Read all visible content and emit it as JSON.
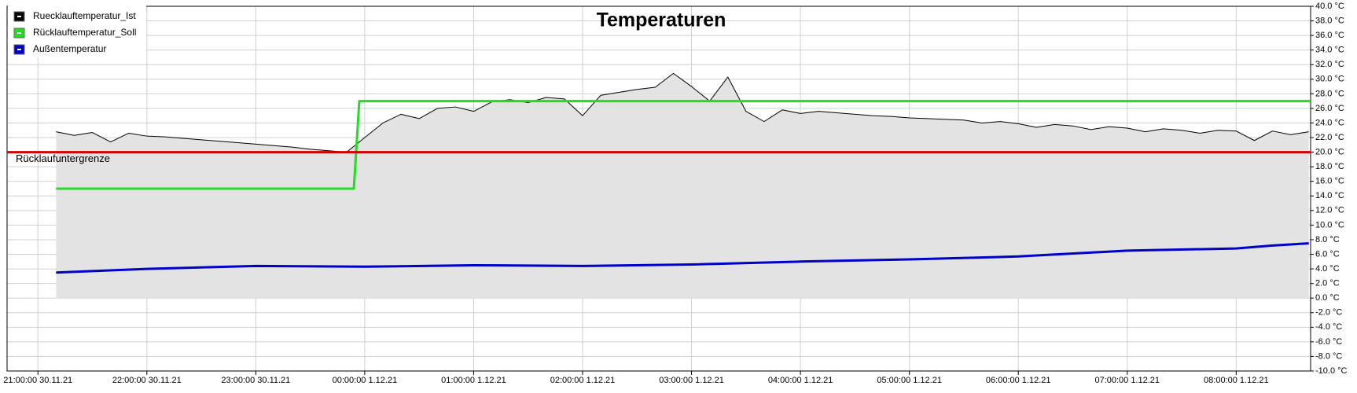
{
  "chart_data": {
    "type": "line",
    "title": "Temperaturen",
    "xlim": [
      "2021-11-30T20:43",
      "2021-12-01T08:41"
    ],
    "xticks": [
      {
        "value": "2021-11-30T21:00",
        "label": "21:00:00 30.11.21"
      },
      {
        "value": "2021-11-30T22:00",
        "label": "22:00:00 30.11.21"
      },
      {
        "value": "2021-11-30T23:00",
        "label": "23:00:00 30.11.21"
      },
      {
        "value": "2021-12-01T00:00",
        "label": "00:00:00 1.12.21"
      },
      {
        "value": "2021-12-01T01:00",
        "label": "01:00:00 1.12.21"
      },
      {
        "value": "2021-12-01T02:00",
        "label": "02:00:00 1.12.21"
      },
      {
        "value": "2021-12-01T03:00",
        "label": "03:00:00 1.12.21"
      },
      {
        "value": "2021-12-01T04:00",
        "label": "04:00:00 1.12.21"
      },
      {
        "value": "2021-12-01T05:00",
        "label": "05:00:00 1.12.21"
      },
      {
        "value": "2021-12-01T06:00",
        "label": "06:00:00 1.12.21"
      },
      {
        "value": "2021-12-01T07:00",
        "label": "07:00:00 1.12.21"
      },
      {
        "value": "2021-12-01T08:00",
        "label": "08:00:00 1.12.21"
      }
    ],
    "ylim": [
      -10,
      40
    ],
    "yticks": [
      {
        "value": 40,
        "label": "40.0 °C"
      },
      {
        "value": 38,
        "label": "38.0 °C"
      },
      {
        "value": 36,
        "label": "36.0 °C"
      },
      {
        "value": 34,
        "label": "34.0 °C"
      },
      {
        "value": 32,
        "label": "32.0 °C"
      },
      {
        "value": 30,
        "label": "30.0 °C"
      },
      {
        "value": 28,
        "label": "28.0 °C"
      },
      {
        "value": 26,
        "label": "26.0 °C"
      },
      {
        "value": 24,
        "label": "24.0 °C"
      },
      {
        "value": 22,
        "label": "22.0 °C"
      },
      {
        "value": 20,
        "label": "20.0 °C"
      },
      {
        "value": 18,
        "label": "18.0 °C"
      },
      {
        "value": 16,
        "label": "16.0 °C"
      },
      {
        "value": 14,
        "label": "14.0 °C"
      },
      {
        "value": 12,
        "label": "12.0 °C"
      },
      {
        "value": 10,
        "label": "10.0 °C"
      },
      {
        "value": 8,
        "label": "8.0 °C"
      },
      {
        "value": 6,
        "label": "6.0 °C"
      },
      {
        "value": 4,
        "label": "4.0 °C"
      },
      {
        "value": 2,
        "label": "2.0 °C"
      },
      {
        "value": 0,
        "label": "0.0 °C"
      },
      {
        "value": -2,
        "label": "-2.0 °C"
      },
      {
        "value": -4,
        "label": "-4.0 °C"
      },
      {
        "value": -6,
        "label": "-6.0 °C"
      },
      {
        "value": -8,
        "label": "-8.0 °C"
      },
      {
        "value": -10,
        "label": "-10.0 °C"
      }
    ],
    "grid": true,
    "legend": "top-left",
    "series": [
      {
        "name": "Ruecklauftemperatur_Ist",
        "color": "#000000",
        "fill": "#e3e3e3",
        "x": [
          "2021-11-30T21:10",
          "2021-11-30T21:20",
          "2021-11-30T21:30",
          "2021-11-30T21:40",
          "2021-11-30T21:50",
          "2021-11-30T22:00",
          "2021-11-30T22:10",
          "2021-11-30T22:20",
          "2021-11-30T22:30",
          "2021-11-30T22:40",
          "2021-11-30T22:50",
          "2021-11-30T23:00",
          "2021-11-30T23:10",
          "2021-11-30T23:20",
          "2021-11-30T23:30",
          "2021-11-30T23:40",
          "2021-11-30T23:50",
          "2021-12-01T00:00",
          "2021-12-01T00:10",
          "2021-12-01T00:20",
          "2021-12-01T00:30",
          "2021-12-01T00:40",
          "2021-12-01T00:50",
          "2021-12-01T01:00",
          "2021-12-01T01:10",
          "2021-12-01T01:20",
          "2021-12-01T01:30",
          "2021-12-01T01:40",
          "2021-12-01T01:50",
          "2021-12-01T02:00",
          "2021-12-01T02:10",
          "2021-12-01T02:20",
          "2021-12-01T02:30",
          "2021-12-01T02:40",
          "2021-12-01T02:50",
          "2021-12-01T03:00",
          "2021-12-01T03:10",
          "2021-12-01T03:20",
          "2021-12-01T03:30",
          "2021-12-01T03:40",
          "2021-12-01T03:50",
          "2021-12-01T04:00",
          "2021-12-01T04:10",
          "2021-12-01T04:20",
          "2021-12-01T04:30",
          "2021-12-01T04:40",
          "2021-12-01T04:50",
          "2021-12-01T05:00",
          "2021-12-01T05:10",
          "2021-12-01T05:20",
          "2021-12-01T05:30",
          "2021-12-01T05:40",
          "2021-12-01T05:50",
          "2021-12-01T06:00",
          "2021-12-01T06:10",
          "2021-12-01T06:20",
          "2021-12-01T06:30",
          "2021-12-01T06:40",
          "2021-12-01T06:50",
          "2021-12-01T07:00",
          "2021-12-01T07:10",
          "2021-12-01T07:20",
          "2021-12-01T07:30",
          "2021-12-01T07:40",
          "2021-12-01T07:50",
          "2021-12-01T08:00",
          "2021-12-01T08:10",
          "2021-12-01T08:20",
          "2021-12-01T08:30",
          "2021-12-01T08:40"
        ],
        "values": [
          22.8,
          22.3,
          22.7,
          21.4,
          22.6,
          22.2,
          22.1,
          21.9,
          21.7,
          21.5,
          21.3,
          21.1,
          20.9,
          20.7,
          20.4,
          20.2,
          20.0,
          22.0,
          24.0,
          25.2,
          24.6,
          26.0,
          26.2,
          25.6,
          26.9,
          27.2,
          26.8,
          27.5,
          27.3,
          25.0,
          27.8,
          28.2,
          28.6,
          28.9,
          30.8,
          29.0,
          27.0,
          30.3,
          25.6,
          24.2,
          25.8,
          25.3,
          25.6,
          25.4,
          25.2,
          25.0,
          24.9,
          24.7,
          24.6,
          24.5,
          24.4,
          24.0,
          24.2,
          23.9,
          23.4,
          23.8,
          23.6,
          23.1,
          23.5,
          23.3,
          22.8,
          23.2,
          23.0,
          22.6,
          23.0,
          22.9,
          21.6,
          22.9,
          22.4,
          22.8
        ]
      },
      {
        "name": "Rücklauftemperatur_Soll",
        "color": "#22dd22",
        "x": [
          "2021-11-30T21:10",
          "2021-11-30T23:54",
          "2021-11-30T23:57",
          "2021-12-01T08:41"
        ],
        "values": [
          15,
          15,
          27,
          27
        ]
      },
      {
        "name": "Außentemperatur",
        "color": "#0000cc",
        "x": [
          "2021-11-30T21:10",
          "2021-11-30T21:30",
          "2021-11-30T22:00",
          "2021-11-30T23:00",
          "2021-12-01T00:00",
          "2021-12-01T01:00",
          "2021-12-01T02:00",
          "2021-12-01T03:00",
          "2021-12-01T04:00",
          "2021-12-01T05:00",
          "2021-12-01T06:00",
          "2021-12-01T07:00",
          "2021-12-01T08:00",
          "2021-12-01T08:20",
          "2021-12-01T08:40"
        ],
        "values": [
          3.5,
          3.7,
          4.0,
          4.4,
          4.3,
          4.5,
          4.4,
          4.6,
          5.0,
          5.3,
          5.7,
          6.5,
          6.8,
          7.2,
          7.5
        ]
      }
    ],
    "hlines": [
      {
        "label": "Rücklaufuntergrenze",
        "value": 20,
        "color": "#d40000"
      }
    ]
  }
}
